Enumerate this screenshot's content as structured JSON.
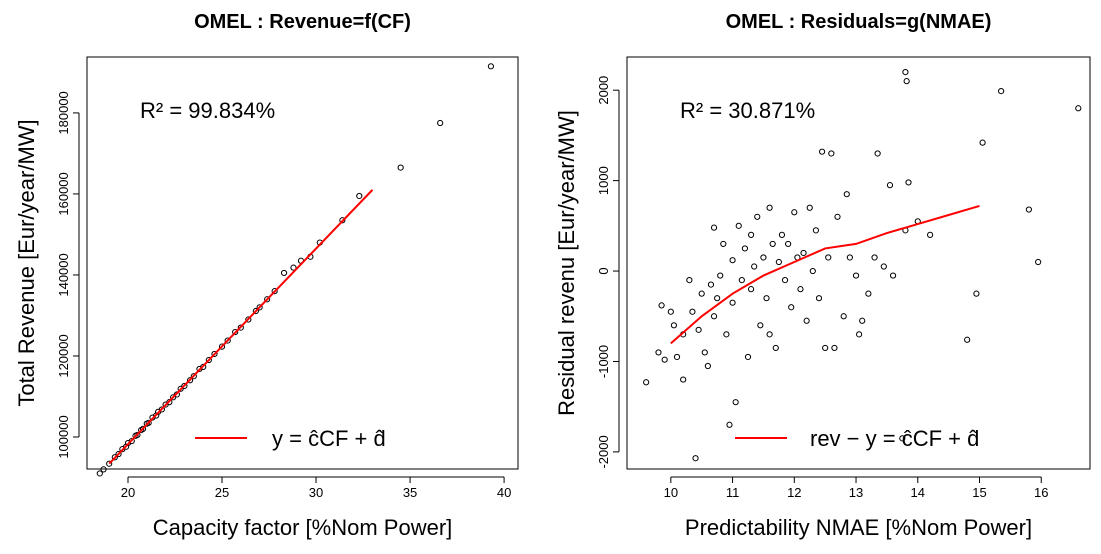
{
  "chart_data": [
    {
      "type": "scatter",
      "title": "OMEL : Revenue=f(CF)",
      "annotation": "R² = 99.834%",
      "x_label": "Capacity factor [%Nom Power]",
      "y_label": "Total Revenue [Eur/year/MW]",
      "xlim": [
        17.82,
        40.74
      ],
      "ylim": [
        92100,
        193800
      ],
      "xticks": [
        20,
        25,
        30,
        35,
        40
      ],
      "yticks": [
        100000,
        120000,
        140000,
        160000,
        180000
      ],
      "legend": "bottom",
      "series": [
        {
          "type": "scatter",
          "color": "#000000",
          "x": [
            18.5,
            18.7,
            19.0,
            19.3,
            19.5,
            19.7,
            19.9,
            20.0,
            20.2,
            20.4,
            20.5,
            20.7,
            20.8,
            21.0,
            21.1,
            21.3,
            21.5,
            21.6,
            21.8,
            22.0,
            22.2,
            22.4,
            22.6,
            22.8,
            23.0,
            23.3,
            23.5,
            23.8,
            24.0,
            24.3,
            24.6,
            25.0,
            25.3,
            25.7,
            26.0,
            26.4,
            26.8,
            27.0,
            27.4,
            27.8,
            28.3,
            28.8,
            29.2,
            29.7,
            30.2,
            31.4,
            32.3,
            34.5,
            36.6,
            39.3
          ],
          "values": [
            91000,
            92000,
            93400,
            95000,
            95800,
            97000,
            97600,
            98500,
            99000,
            100300,
            100500,
            101700,
            102000,
            103300,
            103500,
            104800,
            105300,
            106200,
            106800,
            108000,
            108600,
            109800,
            110500,
            111900,
            112600,
            114000,
            115000,
            116800,
            117300,
            119000,
            120500,
            122300,
            123800,
            125900,
            127000,
            129000,
            131100,
            132000,
            134000,
            136000,
            140500,
            141800,
            143500,
            144500,
            148000,
            153500,
            159500,
            166500,
            177500,
            191500
          ]
        },
        {
          "type": "line",
          "name": "y = ĉCF + d̂",
          "color": "#ff0000",
          "x": [
            19,
            33
          ],
          "values": [
            93400,
            161000
          ]
        }
      ]
    },
    {
      "type": "scatter",
      "title": "OMEL : Residuals=g(NMAE)",
      "annotation": "R² = 30.871%",
      "x_label": "Predictability NMAE [%Nom Power]",
      "y_label": "Residual revenu [Eur/year/MW]",
      "xlim": [
        9.29,
        16.79
      ],
      "ylim": [
        -2189,
        2367
      ],
      "xticks": [
        10,
        11,
        12,
        13,
        14,
        15,
        16
      ],
      "yticks": [
        -2000,
        -1000,
        0,
        1000,
        2000
      ],
      "legend": "bottom",
      "series": [
        {
          "type": "scatter",
          "color": "#000000",
          "x": [
            9.6,
            9.8,
            9.85,
            9.9,
            10.0,
            10.05,
            10.1,
            10.2,
            10.2,
            10.3,
            10.35,
            10.4,
            10.45,
            10.5,
            10.55,
            10.6,
            10.65,
            10.7,
            10.7,
            10.75,
            10.8,
            10.85,
            10.9,
            10.95,
            11.0,
            11.0,
            11.05,
            11.1,
            11.15,
            11.2,
            11.25,
            11.3,
            11.3,
            11.35,
            11.4,
            11.45,
            11.5,
            11.55,
            11.6,
            11.6,
            11.65,
            11.7,
            11.75,
            11.8,
            11.85,
            11.9,
            11.95,
            12.0,
            12.05,
            12.1,
            12.15,
            12.2,
            12.25,
            12.3,
            12.35,
            12.4,
            12.45,
            12.5,
            12.55,
            12.6,
            12.65,
            12.7,
            12.8,
            12.85,
            12.9,
            13.0,
            13.05,
            13.1,
            13.2,
            13.3,
            13.35,
            13.45,
            13.55,
            13.6,
            13.75,
            13.8,
            13.8,
            13.82,
            13.85,
            14.0,
            14.2,
            14.8,
            14.95,
            15.05,
            15.35,
            15.8,
            15.95,
            16.6
          ],
          "values": [
            -1230,
            -900,
            -380,
            -980,
            -450,
            -600,
            -950,
            -700,
            -1200,
            -100,
            -450,
            -2070,
            -650,
            -250,
            -900,
            -1050,
            -150,
            480,
            -500,
            -300,
            -50,
            300,
            -700,
            -1700,
            -350,
            120,
            -1450,
            500,
            -100,
            250,
            -950,
            400,
            -200,
            50,
            600,
            -600,
            150,
            -300,
            700,
            -700,
            300,
            -850,
            100,
            400,
            -100,
            300,
            -400,
            650,
            150,
            -200,
            200,
            -550,
            700,
            0,
            450,
            -300,
            1320,
            -850,
            150,
            1300,
            -850,
            600,
            -500,
            850,
            150,
            -50,
            -700,
            -550,
            -250,
            150,
            1300,
            50,
            950,
            -50,
            -1850,
            450,
            2200,
            2100,
            980,
            550,
            400,
            -760,
            -250,
            1420,
            1990,
            680,
            100,
            1800
          ]
        },
        {
          "type": "line",
          "name": "rev − y = ĉCF + d̂",
          "color": "#ff0000",
          "x": [
            10,
            10.5,
            11,
            11.5,
            12,
            12.5,
            13,
            13.5,
            14,
            14.5,
            15
          ],
          "values": [
            -800,
            -500,
            -250,
            -50,
            100,
            250,
            300,
            420,
            520,
            620,
            720
          ]
        }
      ]
    }
  ]
}
